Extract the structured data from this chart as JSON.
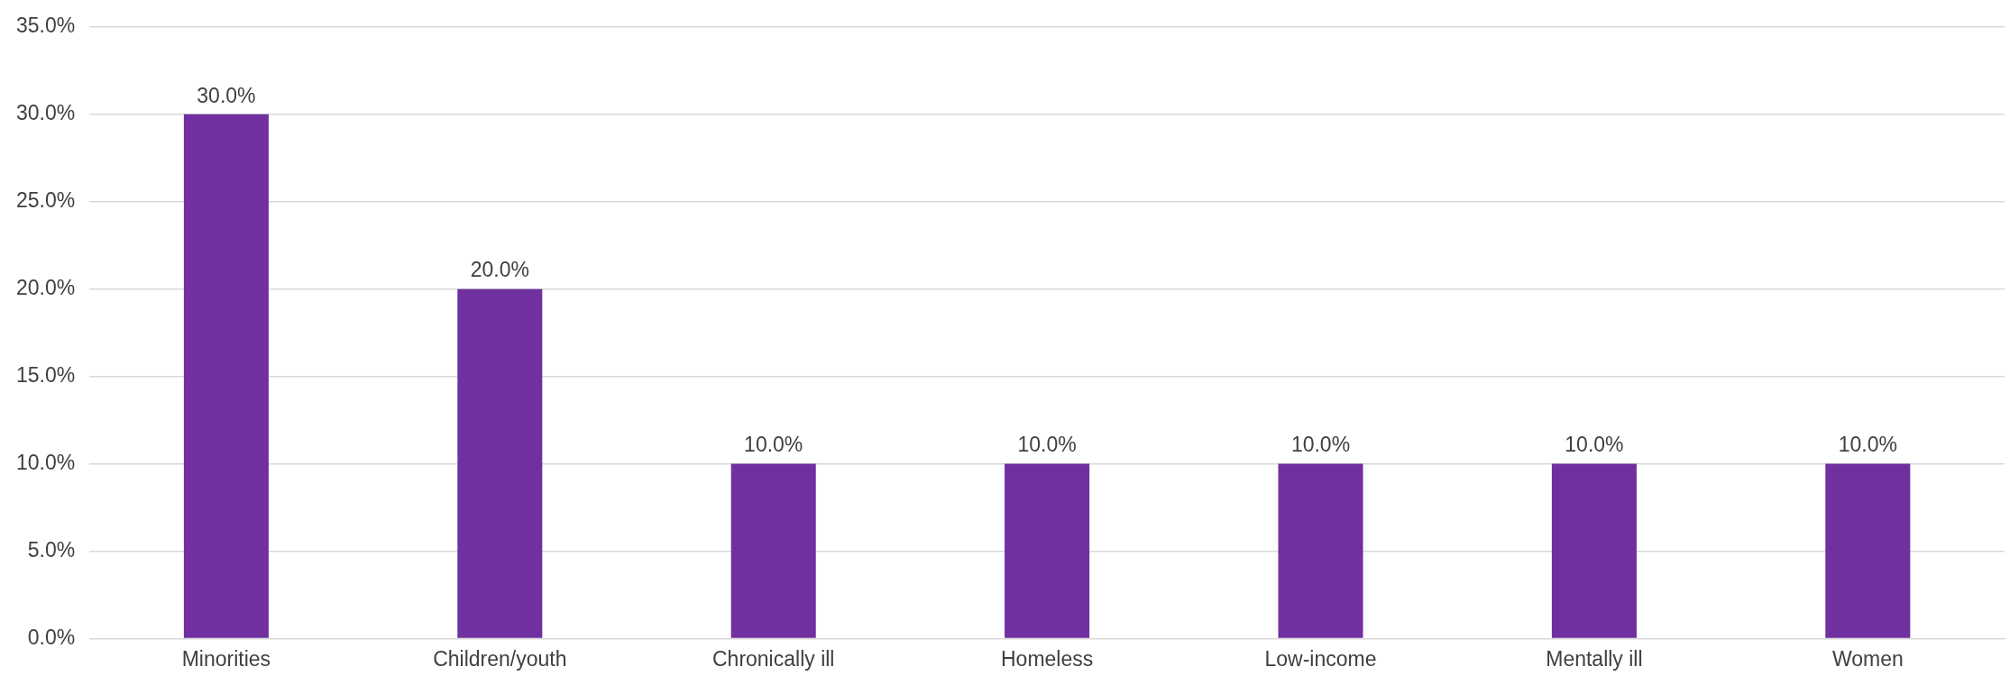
{
  "chart_data": {
    "type": "bar",
    "categories": [
      "Minorities",
      "Children/youth",
      "Chronically ill",
      "Homeless",
      "Low-income",
      "Mentally ill",
      "Women"
    ],
    "values": [
      30,
      20,
      10,
      10,
      10,
      10,
      10
    ],
    "value_labels": [
      "30.0%",
      "20.0%",
      "10.0%",
      "10.0%",
      "10.0%",
      "10.0%",
      "10.0%"
    ],
    "color": "#7030a0",
    "ylim": [
      0,
      35
    ],
    "yticks": [
      {
        "value": 0,
        "label": "0.0%"
      },
      {
        "value": 5,
        "label": "5.0%"
      },
      {
        "value": 10,
        "label": "10.0%"
      },
      {
        "value": 15,
        "label": "15.0%"
      },
      {
        "value": 20,
        "label": "20.0%"
      },
      {
        "value": 25,
        "label": "25.0%"
      },
      {
        "value": 30,
        "label": "30.0%"
      },
      {
        "value": 35,
        "label": "35.0%"
      }
    ],
    "grid": "y"
  }
}
